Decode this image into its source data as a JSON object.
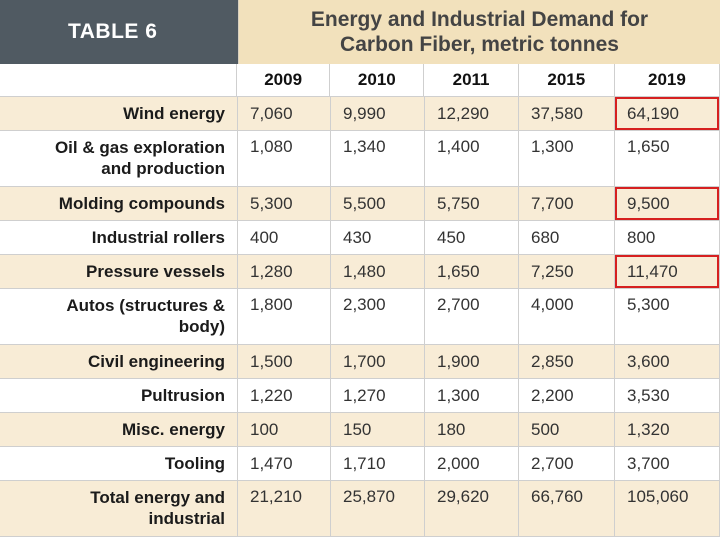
{
  "table": {
    "label": "TABLE 6",
    "title_line1": "Energy and Industrial Demand for",
    "title_line2": "Carbon Fiber, metric tonnes",
    "years": [
      "2009",
      "2010",
      "2011",
      "2015",
      "2019"
    ],
    "rows": [
      {
        "label_line1": "Wind energy",
        "label_line2": "",
        "values": [
          "7,060",
          "9,990",
          "12,290",
          "37,580",
          "64,190"
        ],
        "highlight_2019": true
      },
      {
        "label_line1": "Oil & gas exploration",
        "label_line2": "and production",
        "values": [
          "1,080",
          "1,340",
          "1,400",
          "1,300",
          "1,650"
        ],
        "highlight_2019": false
      },
      {
        "label_line1": "Molding compounds",
        "label_line2": "",
        "values": [
          "5,300",
          "5,500",
          "5,750",
          "7,700",
          "9,500"
        ],
        "highlight_2019": true
      },
      {
        "label_line1": "Industrial rollers",
        "label_line2": "",
        "values": [
          "400",
          "430",
          "450",
          "680",
          "800"
        ],
        "highlight_2019": false
      },
      {
        "label_line1": "Pressure vessels",
        "label_line2": "",
        "values": [
          "1,280",
          "1,480",
          "1,650",
          "7,250",
          "11,470"
        ],
        "highlight_2019": true
      },
      {
        "label_line1": "Autos (structures &",
        "label_line2": "body)",
        "values": [
          "1,800",
          "2,300",
          "2,700",
          "4,000",
          "5,300"
        ],
        "highlight_2019": false
      },
      {
        "label_line1": "Civil engineering",
        "label_line2": "",
        "values": [
          "1,500",
          "1,700",
          "1,900",
          "2,850",
          "3,600"
        ],
        "highlight_2019": false
      },
      {
        "label_line1": "Pultrusion",
        "label_line2": "",
        "values": [
          "1,220",
          "1,270",
          "1,300",
          "2,200",
          "3,530"
        ],
        "highlight_2019": false
      },
      {
        "label_line1": "Misc. energy",
        "label_line2": "",
        "values": [
          "100",
          "150",
          "180",
          "500",
          "1,320"
        ],
        "highlight_2019": false
      },
      {
        "label_line1": "Tooling",
        "label_line2": "",
        "values": [
          "1,470",
          "1,710",
          "2,000",
          "2,700",
          "3,700"
        ],
        "highlight_2019": false
      },
      {
        "label_line1": "Total energy and",
        "label_line2": "industrial",
        "values": [
          "21,210",
          "25,870",
          "29,620",
          "66,760",
          "105,060"
        ],
        "highlight_2019": false
      }
    ]
  },
  "colors": {
    "label_bg": "#505a62",
    "title_bg": "#f2e1bc",
    "shaded_row": "#f8ecd6",
    "highlight_border": "#d62020"
  }
}
